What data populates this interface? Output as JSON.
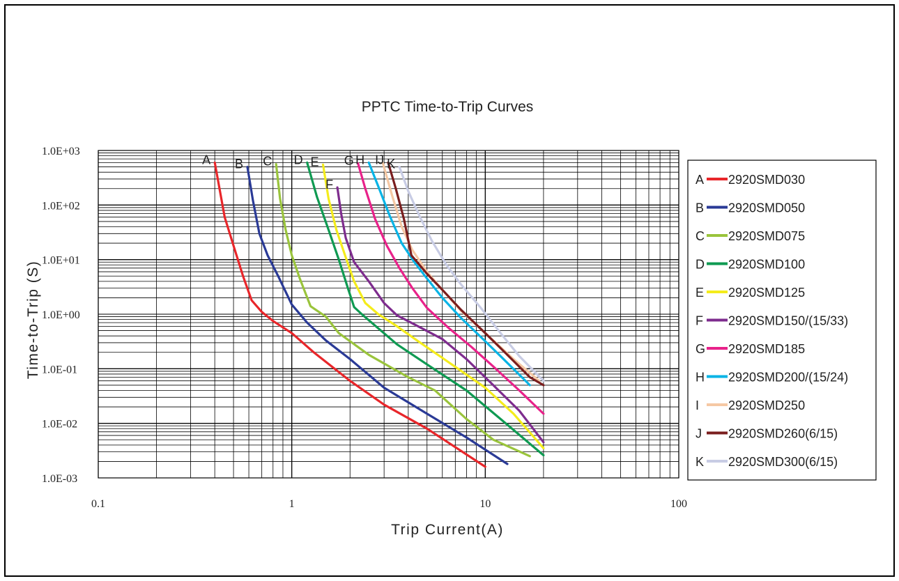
{
  "chart_data": {
    "type": "line",
    "title": "PPTC Time-to-Trip Curves",
    "xlabel": "Trip Current(A)",
    "ylabel": "Time-to-Trip (S)",
    "x_scale": "log",
    "y_scale": "log",
    "xlim": [
      0.1,
      100
    ],
    "ylim": [
      0.001,
      1000
    ],
    "x_tick_labels": [
      "0.1",
      "1",
      "10",
      "100"
    ],
    "y_tick_labels": [
      "1.0E-03",
      "1.0E-02",
      "1.0E-01",
      "1.0E+00",
      "1.0E+01",
      "1.0E+02",
      "1.0E+03"
    ],
    "grid": true,
    "legend_position": "right",
    "series": [
      {
        "letter": "A",
        "name": "2920SMD030",
        "color": "#e8262a",
        "points": [
          [
            0.4,
            600
          ],
          [
            0.45,
            60
          ],
          [
            0.5,
            18
          ],
          [
            0.56,
            5
          ],
          [
            0.62,
            1.8
          ],
          [
            0.7,
            1.1
          ],
          [
            0.8,
            0.75
          ],
          [
            1.0,
            0.45
          ],
          [
            1.3,
            0.2
          ],
          [
            2.0,
            0.06
          ],
          [
            3.0,
            0.022
          ],
          [
            5.0,
            0.008
          ],
          [
            10.0,
            0.0016
          ]
        ]
      },
      {
        "letter": "B",
        "name": "2920SMD050",
        "color": "#2a3a96",
        "points": [
          [
            0.59,
            500
          ],
          [
            0.63,
            120
          ],
          [
            0.68,
            30
          ],
          [
            0.75,
            12
          ],
          [
            0.85,
            5
          ],
          [
            1.0,
            1.5
          ],
          [
            1.2,
            0.7
          ],
          [
            1.5,
            0.33
          ],
          [
            2.0,
            0.15
          ],
          [
            3.0,
            0.045
          ],
          [
            5.0,
            0.015
          ],
          [
            8.0,
            0.0055
          ],
          [
            13.0,
            0.0018
          ]
        ]
      },
      {
        "letter": "C",
        "name": "2920SMD075",
        "color": "#9ac43c",
        "points": [
          [
            0.83,
            560
          ],
          [
            0.87,
            130
          ],
          [
            0.93,
            35
          ],
          [
            1.0,
            12
          ],
          [
            1.1,
            4.5
          ],
          [
            1.25,
            1.4
          ],
          [
            1.5,
            0.9
          ],
          [
            1.75,
            0.45
          ],
          [
            2.5,
            0.18
          ],
          [
            4.0,
            0.07
          ],
          [
            5.5,
            0.04
          ],
          [
            8.0,
            0.012
          ],
          [
            11.0,
            0.005
          ],
          [
            17.0,
            0.0025
          ]
        ]
      },
      {
        "letter": "D",
        "name": "2920SMD100",
        "color": "#0f9a52",
        "points": [
          [
            1.2,
            600
          ],
          [
            1.35,
            140
          ],
          [
            1.55,
            35
          ],
          [
            1.75,
            10
          ],
          [
            1.95,
            3
          ],
          [
            2.1,
            1.35
          ],
          [
            2.3,
            1.0
          ],
          [
            2.8,
            0.55
          ],
          [
            3.5,
            0.28
          ],
          [
            5.0,
            0.12
          ],
          [
            8.0,
            0.04
          ],
          [
            12.0,
            0.012
          ],
          [
            20.0,
            0.0026
          ]
        ]
      },
      {
        "letter": "E",
        "name": "2920SMD125",
        "color": "#f4ec1c",
        "points": [
          [
            1.45,
            550
          ],
          [
            1.55,
            130
          ],
          [
            1.7,
            35
          ],
          [
            1.9,
            11
          ],
          [
            2.1,
            4
          ],
          [
            2.4,
            1.6
          ],
          [
            2.8,
            1.0
          ],
          [
            3.5,
            0.6
          ],
          [
            4.5,
            0.32
          ],
          [
            6.5,
            0.13
          ],
          [
            10.0,
            0.045
          ],
          [
            14.0,
            0.015
          ],
          [
            20.0,
            0.0035
          ]
        ]
      },
      {
        "letter": "F",
        "name": "2920SMD150/(15/33)",
        "color": "#7e2c8e",
        "points": [
          [
            1.72,
            210
          ],
          [
            1.8,
            70
          ],
          [
            1.9,
            25
          ],
          [
            2.1,
            9
          ],
          [
            2.5,
            4
          ],
          [
            3.0,
            1.6
          ],
          [
            3.5,
            0.95
          ],
          [
            4.5,
            0.6
          ],
          [
            6.0,
            0.35
          ],
          [
            8.0,
            0.15
          ],
          [
            11.0,
            0.05
          ],
          [
            15.0,
            0.017
          ],
          [
            20.0,
            0.0045
          ]
        ]
      },
      {
        "letter": "G",
        "name": "2920SMD185",
        "color": "#e8228a",
        "points": [
          [
            2.2,
            580
          ],
          [
            2.4,
            200
          ],
          [
            2.7,
            55
          ],
          [
            3.1,
            18
          ],
          [
            3.6,
            7
          ],
          [
            4.2,
            3
          ],
          [
            5.0,
            1.3
          ],
          [
            6.5,
            0.55
          ],
          [
            8.5,
            0.25
          ],
          [
            11.0,
            0.11
          ],
          [
            15.0,
            0.04
          ],
          [
            20.0,
            0.015
          ]
        ]
      },
      {
        "letter": "H",
        "name": "2920SMD200/(15/24)",
        "color": "#08b4e6",
        "points": [
          [
            2.5,
            600
          ],
          [
            2.8,
            220
          ],
          [
            3.2,
            65
          ],
          [
            3.7,
            20
          ],
          [
            4.3,
            9
          ],
          [
            5.0,
            4.5
          ],
          [
            6.0,
            2.0
          ],
          [
            7.5,
            0.85
          ],
          [
            9.5,
            0.38
          ],
          [
            12.0,
            0.17
          ],
          [
            17.0,
            0.05
          ]
        ]
      },
      {
        "letter": "I",
        "name": "2920SMD250",
        "color": "#f5c8a4",
        "points": [
          [
            2.95,
            600
          ],
          [
            3.3,
            150
          ],
          [
            3.7,
            40
          ],
          [
            4.2,
            15
          ],
          [
            5.0,
            6
          ],
          [
            6.0,
            2.8
          ],
          [
            7.5,
            1.15
          ],
          [
            10.0,
            0.45
          ],
          [
            14.0,
            0.15
          ],
          [
            19.0,
            0.06
          ]
        ]
      },
      {
        "letter": "J",
        "name": "2920SMD260(6/15)",
        "color": "#7a1e1e",
        "points": [
          [
            3.15,
            600
          ],
          [
            3.45,
            200
          ],
          [
            3.8,
            55
          ],
          [
            4.15,
            12
          ],
          [
            5.0,
            5.5
          ],
          [
            6.0,
            2.8
          ],
          [
            7.5,
            1.2
          ],
          [
            10.0,
            0.45
          ],
          [
            13.0,
            0.18
          ],
          [
            17.0,
            0.07
          ],
          [
            20.0,
            0.05
          ]
        ]
      },
      {
        "letter": "K",
        "name": "2920SMD300(6/15)",
        "color": "#c8cce4",
        "points": [
          [
            3.6,
            500
          ],
          [
            4.0,
            180
          ],
          [
            4.6,
            60
          ],
          [
            5.3,
            22
          ],
          [
            6.3,
            8
          ],
          [
            7.5,
            3.5
          ],
          [
            9.5,
            1.3
          ],
          [
            12.0,
            0.45
          ],
          [
            15.0,
            0.17
          ],
          [
            20.0,
            0.06
          ]
        ]
      }
    ]
  }
}
